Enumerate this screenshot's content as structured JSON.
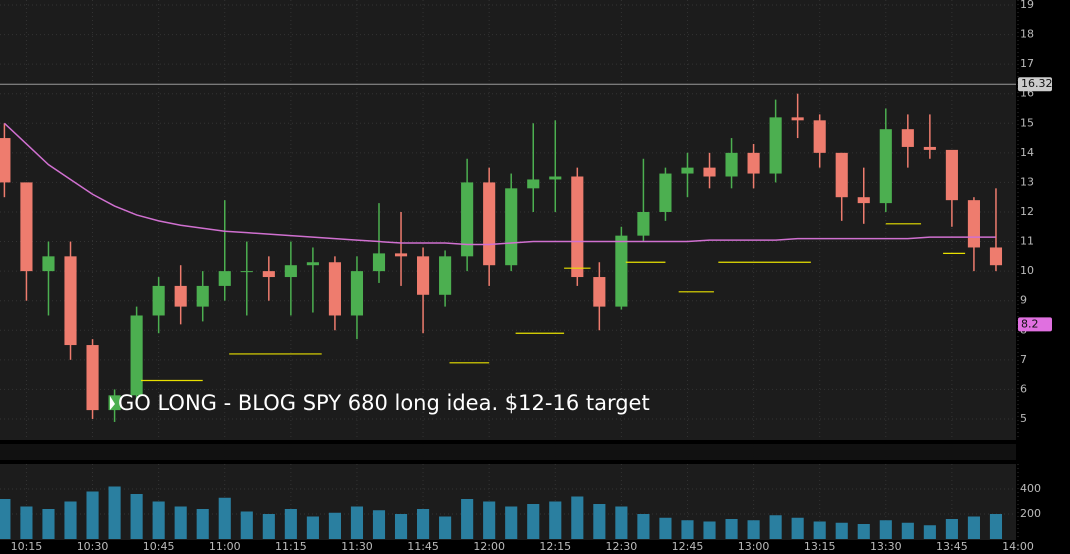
{
  "chart_data": {
    "type": "candlestick",
    "annotation": "GO LONG - BLOG SPY 680 long idea. $12-16 target",
    "x": [
      610,
      615,
      620,
      625,
      630,
      635,
      640,
      645,
      650,
      655,
      660,
      665,
      670,
      675,
      680,
      685,
      690,
      695,
      700,
      705,
      710,
      715,
      720,
      725,
      730,
      735,
      740,
      745,
      750,
      755,
      760,
      765,
      770,
      775,
      780,
      785,
      790,
      795,
      800,
      805,
      810,
      815,
      820,
      825,
      830,
      835
    ],
    "open": [
      14.5,
      13,
      10,
      10.5,
      7.5,
      5.3,
      5.8,
      8.5,
      9.5,
      8.8,
      9.5,
      10,
      10,
      9.8,
      10.2,
      10.3,
      8.5,
      10,
      10.6,
      10.5,
      9.2,
      10.5,
      13,
      10.2,
      12.8,
      13.1,
      13.2,
      9.8,
      8.8,
      11.2,
      12,
      13.3,
      13.5,
      13.2,
      14,
      13.3,
      15.2,
      15.1,
      14,
      12.5,
      12.3,
      14.8,
      14.2,
      14.1,
      12.4,
      10.8
    ],
    "high": [
      15,
      13,
      11,
      11,
      7.7,
      6,
      8.8,
      9.8,
      10.2,
      10,
      12.4,
      11,
      10.5,
      11,
      10.8,
      10.5,
      10.5,
      12.3,
      12,
      10.8,
      10.7,
      13.8,
      13.5,
      13.3,
      15,
      15.1,
      13.5,
      10.3,
      11.5,
      13.8,
      13.5,
      14,
      14,
      14.5,
      14.3,
      15.8,
      16,
      15.3,
      14,
      13.5,
      15.5,
      15.3,
      15.3,
      14,
      12.5,
      12.8
    ],
    "low": [
      12.5,
      9,
      8.5,
      7,
      5,
      4.9,
      5.5,
      7.9,
      8.2,
      8.3,
      9,
      8.5,
      9,
      8.5,
      8.6,
      8,
      7.7,
      9.6,
      9.5,
      7.9,
      8.8,
      10,
      9.5,
      10,
      12,
      12,
      9.5,
      8,
      8.7,
      11,
      11.7,
      12.5,
      12.8,
      12.8,
      12.8,
      13,
      14.5,
      13.5,
      11.7,
      11.6,
      12,
      13.5,
      13.8,
      11.5,
      10,
      10
    ],
    "close": [
      13,
      10,
      10.5,
      7.5,
      5.3,
      5.8,
      8.5,
      9.5,
      8.8,
      9.5,
      10,
      10,
      9.8,
      10.2,
      10.3,
      8.5,
      10,
      10.6,
      10.5,
      9.2,
      10.5,
      13,
      10.2,
      12.8,
      13.1,
      13.2,
      9.8,
      8.8,
      11.2,
      12,
      13.3,
      13.5,
      13.2,
      14,
      13.3,
      15.2,
      15.1,
      14,
      12.5,
      12.3,
      14.8,
      14.2,
      14.1,
      12.4,
      10.8,
      10.2
    ],
    "volume": [
      320,
      260,
      240,
      300,
      380,
      420,
      360,
      300,
      260,
      240,
      330,
      220,
      200,
      240,
      180,
      210,
      260,
      230,
      200,
      240,
      180,
      320,
      300,
      260,
      280,
      300,
      340,
      280,
      260,
      200,
      170,
      150,
      140,
      160,
      150,
      190,
      170,
      140,
      130,
      120,
      150,
      130,
      110,
      160,
      180,
      200
    ],
    "ma": [
      15,
      14.3,
      13.6,
      13.1,
      12.6,
      12.2,
      11.9,
      11.7,
      11.55,
      11.45,
      11.35,
      11.3,
      11.25,
      11.2,
      11.15,
      11.1,
      11.05,
      11,
      10.95,
      10.95,
      10.95,
      10.9,
      10.9,
      10.95,
      11,
      11,
      11,
      11,
      11,
      11,
      11,
      11,
      11.05,
      11.05,
      11.05,
      11.05,
      11.1,
      11.1,
      11.1,
      11.1,
      11.1,
      11.1,
      11.15,
      11.15,
      11.15,
      11.15
    ],
    "up_color": "#4caf50",
    "down_color": "#ee7c6e",
    "ma_color": "#d070d0",
    "level_color": "#e8e000",
    "volume_color": "#2a7fa0",
    "levels": [
      {
        "value": 6.3,
        "x0": 641,
        "x1": 655
      },
      {
        "value": 7.2,
        "x0": 661,
        "x1": 682
      },
      {
        "value": 6.9,
        "x0": 711,
        "x1": 720
      },
      {
        "value": 7.9,
        "x0": 726,
        "x1": 737
      },
      {
        "value": 10.1,
        "x0": 737,
        "x1": 743
      },
      {
        "value": 10.3,
        "x0": 751,
        "x1": 760
      },
      {
        "value": 9.3,
        "x0": 763,
        "x1": 771
      },
      {
        "value": 10.3,
        "x0": 772,
        "x1": 793
      },
      {
        "value": 11.6,
        "x0": 810,
        "x1": 818
      },
      {
        "value": 10.6,
        "x0": 823,
        "x1": 828
      }
    ],
    "price_markers": [
      {
        "value": 16.32,
        "color": "#cccccc"
      },
      {
        "value": 8.2,
        "color": "#e070e0"
      }
    ],
    "xlim": [
      609,
      840
    ],
    "xticks": [
      {
        "value": 615,
        "label": "10:15"
      },
      {
        "value": 630,
        "label": "10:30"
      },
      {
        "value": 645,
        "label": "10:45"
      },
      {
        "value": 660,
        "label": "11:00"
      },
      {
        "value": 675,
        "label": "11:15"
      },
      {
        "value": 690,
        "label": "11:30"
      },
      {
        "value": 705,
        "label": "11:45"
      },
      {
        "value": 720,
        "label": "12:00"
      },
      {
        "value": 735,
        "label": "12:15"
      },
      {
        "value": 750,
        "label": "12:30"
      },
      {
        "value": 765,
        "label": "12:45"
      },
      {
        "value": 780,
        "label": "13:00"
      },
      {
        "value": 795,
        "label": "13:15"
      },
      {
        "value": 810,
        "label": "13:30"
      },
      {
        "value": 825,
        "label": "13:45"
      },
      {
        "value": 840,
        "label": "14:00"
      }
    ],
    "ylim": [
      4.83,
      19
    ],
    "yticks": [
      5,
      6,
      7,
      8,
      9,
      10,
      11,
      12,
      13,
      14,
      15,
      16,
      17,
      18,
      19
    ],
    "y2lim": [
      0,
      600
    ],
    "y2ticks": [
      200,
      400
    ],
    "grid": true
  }
}
